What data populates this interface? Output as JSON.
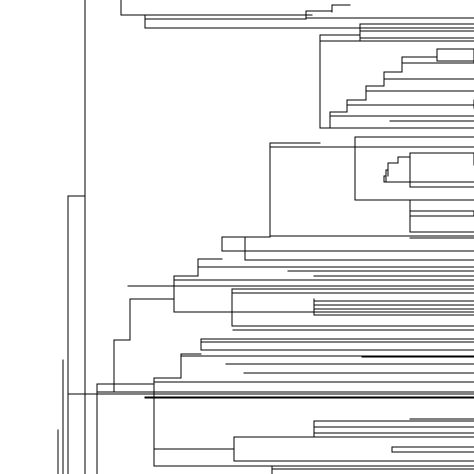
{
  "diagram": {
    "type": "phylogenetic-tree",
    "orientation": "root-left",
    "view": "cropped-zoom",
    "background": "#ffffff",
    "line_color": "#000000",
    "labels_visible": false
  }
}
